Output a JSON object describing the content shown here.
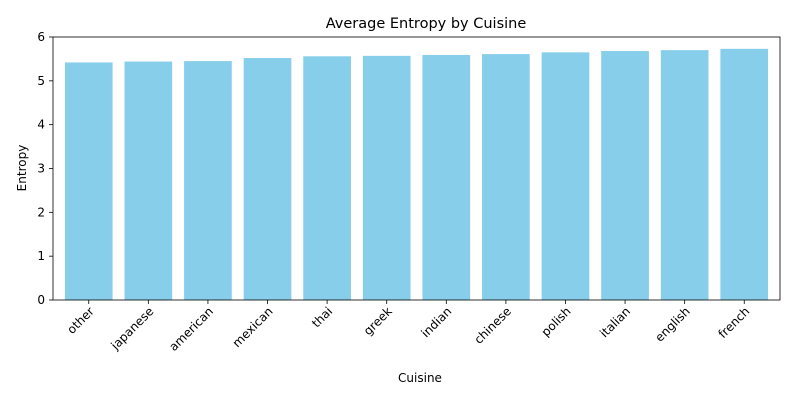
{
  "chart_data": {
    "type": "bar",
    "title": "Average Entropy by Cuisine",
    "xlabel": "Cuisine",
    "ylabel": "Entropy",
    "categories": [
      "other",
      "japanese",
      "american",
      "mexican",
      "thai",
      "greek",
      "indian",
      "chinese",
      "polish",
      "italian",
      "english",
      "french"
    ],
    "values": [
      5.42,
      5.44,
      5.45,
      5.52,
      5.56,
      5.57,
      5.59,
      5.61,
      5.65,
      5.68,
      5.7,
      5.73
    ],
    "ylim": [
      0,
      6
    ],
    "yticks": [
      0,
      1,
      2,
      3,
      4,
      5,
      6
    ],
    "bar_color": "#87CEEB",
    "grid": false,
    "legend": "none"
  }
}
